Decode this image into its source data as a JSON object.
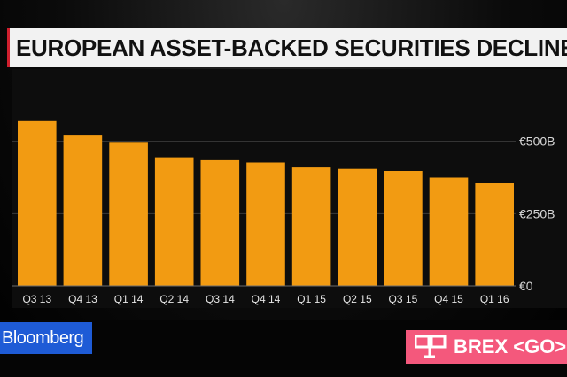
{
  "chart_data": {
    "type": "bar",
    "title": "EUROPEAN ASSET-BACKED SECURITIES DECLINE",
    "categories": [
      "Q3 13",
      "Q4 13",
      "Q1 14",
      "Q2 14",
      "Q3 14",
      "Q4 14",
      "Q1 15",
      "Q2 15",
      "Q3 15",
      "Q4 15",
      "Q1 16"
    ],
    "values": [
      570,
      520,
      495,
      445,
      435,
      427,
      410,
      405,
      398,
      375,
      355
    ],
    "ylim": [
      0,
      750
    ],
    "yticks": [
      {
        "value": 0,
        "label": "€0"
      },
      {
        "value": 250,
        "label": "€250B"
      },
      {
        "value": 500,
        "label": "€500B"
      }
    ],
    "xlabel": "",
    "ylabel": "",
    "bar_color": "#f29b12",
    "grid": true
  },
  "overlay": {
    "logo_text": "Bloomberg",
    "ticker_text": "BREX <GO>",
    "logo_color": "#1e5bd6",
    "ticker_color": "#f4587c"
  }
}
